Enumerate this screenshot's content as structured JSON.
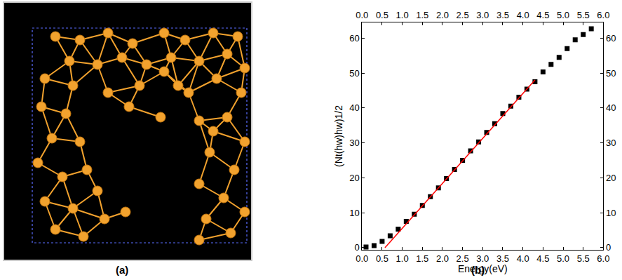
{
  "panel_labels": [
    "(a)",
    "(b)"
  ],
  "chart_data": {
    "type": "scatter",
    "x_label": "Energy(eV)",
    "y_label": "(Nt(hw)hw)1/2",
    "xlim": [
      0,
      6
    ],
    "ylim": [
      -0.6,
      64.5
    ],
    "xticks": [
      {
        "value": 0,
        "label": "0.0"
      },
      {
        "value": 0.5,
        "label": "0.5"
      },
      {
        "value": 1,
        "label": "1.0"
      },
      {
        "value": 1.5,
        "label": "1.5"
      },
      {
        "value": 2,
        "label": "2.0"
      },
      {
        "value": 2.5,
        "label": "2.5"
      },
      {
        "value": 3,
        "label": "3.0"
      },
      {
        "value": 3.5,
        "label": "3.5"
      },
      {
        "value": 4,
        "label": "4.0"
      },
      {
        "value": 4.5,
        "label": "4.5"
      },
      {
        "value": 5,
        "label": "5.0"
      },
      {
        "value": 5.5,
        "label": "5.5"
      },
      {
        "value": 6,
        "label": "6.0"
      }
    ],
    "yticks": [
      0,
      10,
      20,
      30,
      40,
      50,
      60
    ],
    "grid": false,
    "series": [
      {
        "type": "scatter",
        "marker": "square",
        "color": "#000000",
        "x": [
          0.1,
          0.3,
          0.5,
          0.7,
          0.9,
          1.1,
          1.3,
          1.5,
          1.7,
          1.9,
          2.1,
          2.3,
          2.5,
          2.7,
          2.9,
          3.1,
          3.3,
          3.5,
          3.7,
          3.9,
          4.1,
          4.3,
          4.5,
          4.7,
          4.9,
          5.1,
          5.3,
          5.5,
          5.7
        ],
        "values": [
          0.2,
          0.6,
          1.8,
          3.4,
          5.3,
          7.5,
          9.6,
          12.1,
          14.6,
          17.1,
          19.8,
          22.4,
          25.0,
          27.7,
          30.3,
          33.0,
          35.5,
          38.4,
          40.5,
          43.1,
          45.4,
          47.5,
          50.3,
          52.5,
          54.5,
          57.0,
          59.5,
          61.0,
          62.7
        ]
      },
      {
        "type": "line",
        "line_style": "solid",
        "color": "#ff0000",
        "x": [
          0.57,
          4.3
        ],
        "values": [
          0,
          48
        ]
      }
    ]
  }
}
